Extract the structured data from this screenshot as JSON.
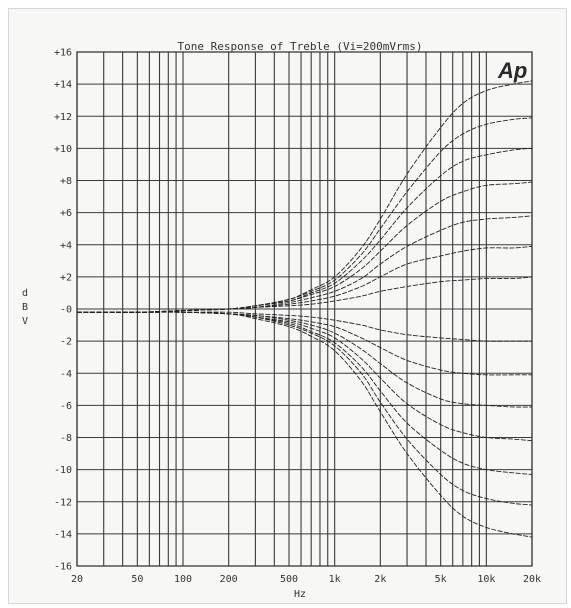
{
  "chart_data": {
    "type": "line",
    "title": "Tone Response of Treble (Vi=200mVrms)",
    "xlabel": "Hz",
    "ylabel": [
      "d",
      "B",
      "V"
    ],
    "xscale": "log",
    "xlim": [
      20,
      20000
    ],
    "ylim": [
      -16,
      16
    ],
    "grid": true,
    "logo": "Ap",
    "x_ticks": [
      {
        "value": 20,
        "label": "20"
      },
      {
        "value": 50,
        "label": "50"
      },
      {
        "value": 100,
        "label": "100"
      },
      {
        "value": 200,
        "label": "200"
      },
      {
        "value": 500,
        "label": "500"
      },
      {
        "value": 1000,
        "label": "1k"
      },
      {
        "value": 2000,
        "label": "2k"
      },
      {
        "value": 5000,
        "label": "5k"
      },
      {
        "value": 10000,
        "label": "10k"
      },
      {
        "value": 20000,
        "label": "20k"
      }
    ],
    "y_ticks": [
      {
        "value": 16,
        "label": "+16"
      },
      {
        "value": 14,
        "label": "+14"
      },
      {
        "value": 12,
        "label": "+12"
      },
      {
        "value": 10,
        "label": "+10"
      },
      {
        "value": 8,
        "label": "+8"
      },
      {
        "value": 6,
        "label": "+6"
      },
      {
        "value": 4,
        "label": "+4"
      },
      {
        "value": 2,
        "label": "+2"
      },
      {
        "value": 0,
        "label": "-0"
      },
      {
        "value": -2,
        "label": "-2"
      },
      {
        "value": -4,
        "label": "-4"
      },
      {
        "value": -6,
        "label": "-6"
      },
      {
        "value": -8,
        "label": "-8"
      },
      {
        "value": -10,
        "label": "-10"
      },
      {
        "value": -12,
        "label": "-12"
      },
      {
        "value": -14,
        "label": "-14"
      },
      {
        "value": -16,
        "label": "-16"
      }
    ],
    "x": [
      20,
      50,
      100,
      200,
      300,
      500,
      700,
      1000,
      1500,
      2000,
      3000,
      5000,
      7000,
      10000,
      15000,
      20000
    ],
    "series": [
      {
        "values": [
          -0.2,
          -0.2,
          -0.1,
          0.0,
          0.2,
          0.6,
          1.2,
          2.0,
          3.8,
          5.6,
          8.4,
          11.3,
          12.8,
          13.6,
          14.0,
          14.2
        ]
      },
      {
        "values": [
          -0.2,
          -0.2,
          -0.1,
          0.0,
          0.2,
          0.6,
          1.1,
          1.8,
          3.4,
          5.0,
          7.3,
          9.8,
          10.9,
          11.5,
          11.8,
          11.9
        ]
      },
      {
        "values": [
          -0.2,
          -0.2,
          -0.1,
          0.0,
          0.2,
          0.5,
          1.0,
          1.6,
          3.0,
          4.3,
          6.3,
          8.3,
          9.2,
          9.6,
          9.9,
          10.0
        ]
      },
      {
        "values": [
          -0.2,
          -0.2,
          -0.1,
          0.0,
          0.2,
          0.5,
          0.9,
          1.4,
          2.5,
          3.6,
          5.2,
          6.7,
          7.3,
          7.7,
          7.8,
          7.9
        ]
      },
      {
        "values": [
          -0.2,
          -0.2,
          -0.1,
          0.0,
          0.1,
          0.4,
          0.7,
          1.1,
          1.9,
          2.8,
          3.9,
          4.9,
          5.4,
          5.6,
          5.7,
          5.8
        ]
      },
      {
        "values": [
          -0.2,
          -0.2,
          -0.1,
          0.0,
          0.1,
          0.3,
          0.5,
          0.8,
          1.4,
          2.0,
          2.8,
          3.3,
          3.6,
          3.8,
          3.8,
          3.9
        ]
      },
      {
        "values": [
          -0.2,
          -0.2,
          -0.1,
          0.0,
          0.1,
          0.2,
          0.3,
          0.5,
          0.8,
          1.1,
          1.4,
          1.7,
          1.8,
          1.9,
          1.9,
          2.0
        ]
      },
      {
        "values": [
          -0.2,
          -0.2,
          -0.2,
          -0.2,
          -0.3,
          -0.4,
          -0.5,
          -0.7,
          -1.0,
          -1.3,
          -1.6,
          -1.8,
          -1.9,
          -2.0,
          -2.0,
          -2.0
        ]
      },
      {
        "values": [
          -0.2,
          -0.2,
          -0.2,
          -0.3,
          -0.4,
          -0.6,
          -0.8,
          -1.1,
          -1.8,
          -2.4,
          -3.2,
          -3.8,
          -4.0,
          -4.1,
          -4.1,
          -4.1
        ]
      },
      {
        "values": [
          -0.2,
          -0.2,
          -0.2,
          -0.3,
          -0.4,
          -0.7,
          -1.0,
          -1.5,
          -2.5,
          -3.4,
          -4.6,
          -5.6,
          -5.9,
          -6.0,
          -6.1,
          -6.1
        ]
      },
      {
        "values": [
          -0.2,
          -0.2,
          -0.2,
          -0.3,
          -0.5,
          -0.8,
          -1.2,
          -1.8,
          -3.1,
          -4.3,
          -5.9,
          -7.2,
          -7.7,
          -8.0,
          -8.1,
          -8.2
        ]
      },
      {
        "values": [
          -0.2,
          -0.2,
          -0.2,
          -0.3,
          -0.5,
          -0.9,
          -1.4,
          -2.1,
          -3.6,
          -5.1,
          -7.1,
          -8.8,
          -9.6,
          -10.0,
          -10.2,
          -10.3
        ]
      },
      {
        "values": [
          -0.2,
          -0.2,
          -0.2,
          -0.3,
          -0.5,
          -1.0,
          -1.5,
          -2.3,
          -4.0,
          -5.8,
          -8.1,
          -10.3,
          -11.3,
          -11.8,
          -12.1,
          -12.2
        ]
      },
      {
        "values": [
          -0.2,
          -0.2,
          -0.2,
          -0.3,
          -0.6,
          -1.1,
          -1.7,
          -2.6,
          -4.5,
          -6.4,
          -9.0,
          -11.6,
          -12.9,
          -13.6,
          -14.0,
          -14.2
        ]
      }
    ]
  }
}
